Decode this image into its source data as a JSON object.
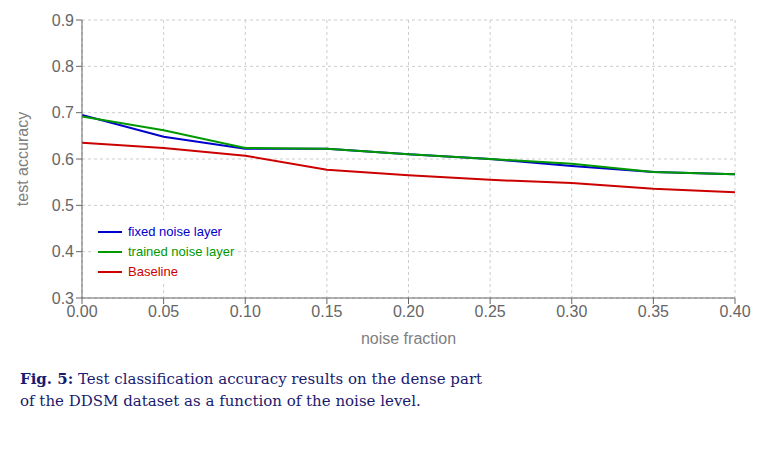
{
  "chart_data": {
    "type": "line",
    "x_label": "noise fraction",
    "y_label": "test accuracy",
    "x": [
      0.0,
      0.05,
      0.1,
      0.15,
      0.2,
      0.25,
      0.3,
      0.35,
      0.4
    ],
    "series": [
      {
        "name": "fixed noise layer",
        "color": "#0000cc",
        "values": [
          0.695,
          0.648,
          0.622,
          0.622,
          0.61,
          0.6,
          0.585,
          0.572,
          0.567
        ]
      },
      {
        "name": "trained noise layer",
        "color": "#009900",
        "values": [
          0.692,
          0.662,
          0.624,
          0.622,
          0.61,
          0.6,
          0.59,
          0.572,
          0.567
        ]
      },
      {
        "name": "Baseline",
        "color": "#cc0000",
        "values": [
          0.635,
          0.624,
          0.607,
          0.577,
          0.565,
          0.555,
          0.548,
          0.536,
          0.528
        ]
      }
    ],
    "xlim": [
      0.0,
      0.4
    ],
    "ylim": [
      0.3,
      0.9
    ],
    "xticks": [
      {
        "value": 0.0,
        "label": "0.00"
      },
      {
        "value": 0.05,
        "label": "0.05"
      },
      {
        "value": 0.1,
        "label": "0.10"
      },
      {
        "value": 0.15,
        "label": "0.15"
      },
      {
        "value": 0.2,
        "label": "0.20"
      },
      {
        "value": 0.25,
        "label": "0.25"
      },
      {
        "value": 0.3,
        "label": "0.30"
      },
      {
        "value": 0.35,
        "label": "0.35"
      },
      {
        "value": 0.4,
        "label": "0.40"
      }
    ],
    "yticks": [
      0.3,
      0.4,
      0.5,
      0.6,
      0.7,
      0.8,
      0.9
    ],
    "grid": true,
    "legend": "lower left",
    "annotations": [
      {
        "text": "Fig. 5:",
        "color": "#1a1a6e"
      },
      {
        "text": "Test classification accuracy results on the dense part",
        "color": "#1a1a6e"
      },
      {
        "text": "of the DDSM dataset as a function of the noise level.",
        "color": "#1a1a6e"
      }
    ]
  }
}
